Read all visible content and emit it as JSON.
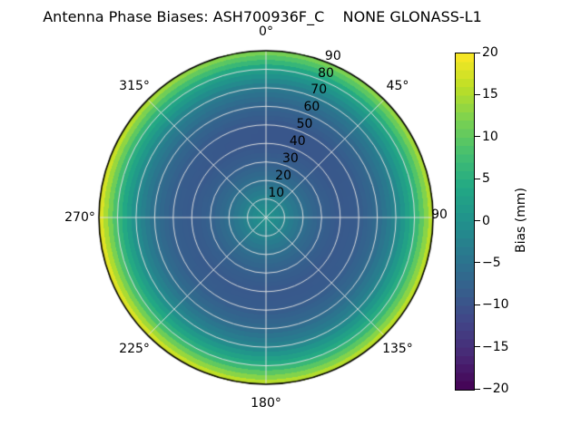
{
  "header": {
    "title": "Antenna Phase Biases: ASH700936F_C    NONE GLONASS-L1"
  },
  "plot": {
    "background": "#ffffff",
    "grid_color": "rgba(225,225,225,0.95)",
    "outline_color": "#000000",
    "rlabel_angle_deg": 22.5
  },
  "polar_axis": {
    "angular_ticks": [
      {
        "angle_deg": 0,
        "label": "0°"
      },
      {
        "angle_deg": 45,
        "label": "45°"
      },
      {
        "angle_deg": 90,
        "label": "90"
      },
      {
        "angle_deg": 135,
        "label": "135°"
      },
      {
        "angle_deg": 180,
        "label": "180°"
      },
      {
        "angle_deg": 225,
        "label": "225°"
      },
      {
        "angle_deg": 270,
        "label": "270°"
      },
      {
        "angle_deg": 315,
        "label": "315°"
      }
    ],
    "radial_ticks": [
      10,
      20,
      30,
      40,
      50,
      60,
      70,
      80,
      90
    ]
  },
  "colorbar": {
    "label": "Bias (mm)",
    "min": -20,
    "max": 20,
    "ticks": [
      {
        "value": 20,
        "label": "20"
      },
      {
        "value": 15,
        "label": "15"
      },
      {
        "value": 10,
        "label": "10"
      },
      {
        "value": 5,
        "label": "5"
      },
      {
        "value": 0,
        "label": "0"
      },
      {
        "value": -5,
        "label": "−5"
      },
      {
        "value": -10,
        "label": "−10"
      },
      {
        "value": -15,
        "label": "−15"
      },
      {
        "value": -20,
        "label": "−20"
      }
    ]
  },
  "chart_data": {
    "type": "heatmap",
    "projection": "polar",
    "title": "Antenna Phase Biases: ASH700936F_C    NONE GLONASS-L1",
    "theta_zero_location": "top",
    "theta_direction": "clockwise",
    "angular_ticks_deg": [
      0,
      45,
      90,
      135,
      180,
      225,
      270,
      315
    ],
    "radial_ticks_deg": [
      10,
      20,
      30,
      40,
      50,
      60,
      70,
      80,
      90
    ],
    "radial_range_deg": [
      0,
      90
    ],
    "grid": true,
    "colorbar_label": "Bias (mm)",
    "color_range_mm": [
      -20,
      20
    ],
    "colormap": "viridis",
    "colormap_stops": [
      {
        "t": 0.0,
        "color": "#440154"
      },
      {
        "t": 0.1,
        "color": "#482875"
      },
      {
        "t": 0.2,
        "color": "#414487"
      },
      {
        "t": 0.3,
        "color": "#35608d"
      },
      {
        "t": 0.4,
        "color": "#2a788e"
      },
      {
        "t": 0.5,
        "color": "#21918c"
      },
      {
        "t": 0.6,
        "color": "#22a884"
      },
      {
        "t": 0.7,
        "color": "#44bf70"
      },
      {
        "t": 0.8,
        "color": "#7ad151"
      },
      {
        "t": 0.9,
        "color": "#bddf26"
      },
      {
        "t": 1.0,
        "color": "#fde725"
      }
    ],
    "radial_profile": {
      "zenith_deg": [
        0,
        10,
        20,
        30,
        40,
        50,
        60,
        70,
        80,
        90
      ],
      "bias_mm": [
        0.5,
        -2,
        -5.5,
        -8,
        -9,
        -8.5,
        -6,
        -1.5,
        6,
        18
      ]
    },
    "azimuthal_modulation": {
      "cos_amp": -2.0,
      "sin_amp": -1.25,
      "cos2_amp": -1.625,
      "offset": -1.375,
      "radial_power": 3
    },
    "grid_bin": {
      "radial_deg": 2.5,
      "azimuth_deg": 5
    }
  }
}
